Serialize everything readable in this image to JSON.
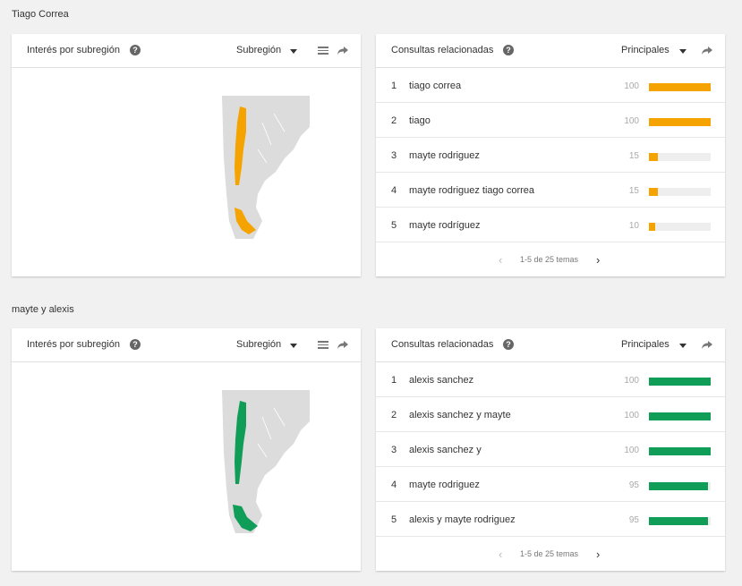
{
  "colors": {
    "orange": "#f5a300",
    "orange_dark": "#e08a00",
    "green": "#0f9d58",
    "track": "#eeeeee",
    "land": "#dcdcdc"
  },
  "sections": [
    {
      "title": "Tiago Correa",
      "accent": "#f5a300",
      "map_panel": {
        "title": "Interés por subregión",
        "dropdown": "Subregión",
        "region_color": "#f5a300"
      },
      "queries_panel": {
        "title": "Consultas relacionadas",
        "dropdown": "Principales",
        "rows": [
          {
            "rank": "1",
            "query": "tiago correa",
            "value": "100",
            "level": 1.0
          },
          {
            "rank": "2",
            "query": "tiago",
            "value": "100",
            "level": 1.0
          },
          {
            "rank": "3",
            "query": "mayte rodriguez",
            "value": "15",
            "level": 0.15
          },
          {
            "rank": "4",
            "query": "mayte rodriguez tiago correa",
            "value": "15",
            "level": 0.15
          },
          {
            "rank": "5",
            "query": "mayte rodríguez",
            "value": "10",
            "level": 0.1
          }
        ],
        "pager": "1-5 de 25 temas"
      }
    },
    {
      "title": "mayte y alexis",
      "accent": "#0f9d58",
      "map_panel": {
        "title": "Interés por subregión",
        "dropdown": "Subregión",
        "region_color": "#0f9d58"
      },
      "queries_panel": {
        "title": "Consultas relacionadas",
        "dropdown": "Principales",
        "rows": [
          {
            "rank": "1",
            "query": "alexis sanchez",
            "value": "100",
            "level": 1.0
          },
          {
            "rank": "2",
            "query": "alexis sanchez y mayte",
            "value": "100",
            "level": 1.0
          },
          {
            "rank": "3",
            "query": "alexis sanchez y",
            "value": "100",
            "level": 1.0
          },
          {
            "rank": "4",
            "query": "mayte rodriguez",
            "value": "95",
            "level": 0.95
          },
          {
            "rank": "5",
            "query": "alexis y mayte rodriguez",
            "value": "95",
            "level": 0.95
          }
        ],
        "pager": "1-5 de 25 temas"
      }
    }
  ]
}
